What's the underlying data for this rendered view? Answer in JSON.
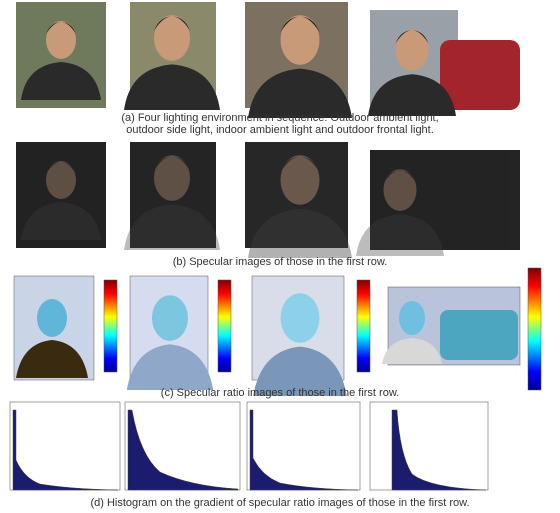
{
  "captions": {
    "a": [
      "(a) Four lighting environment in sequence: Outdoor ambient light,",
      "outdoor side light, indoor ambient light and outdoor frontal light."
    ],
    "b": "(b) Specular images of those in the first row.",
    "c": "(c) Specular ratio images of those in the first row.",
    "d": "(d) Histogram on the gradient of specular ratio images of those in the first row."
  }
}
